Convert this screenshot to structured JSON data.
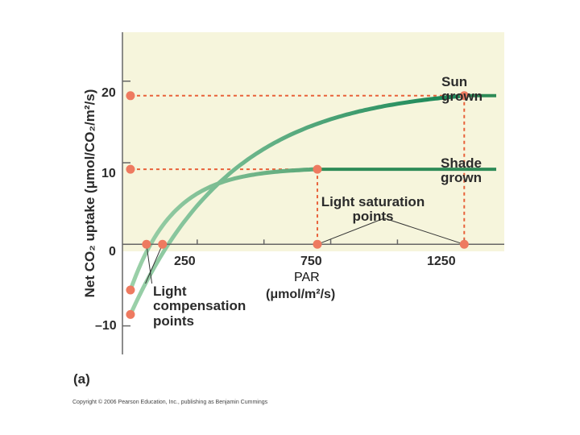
{
  "chart_data": {
    "type": "line",
    "panel_label": "(a)",
    "xlabel": "PAR",
    "xlabel_units": "(μmol/m²/s)",
    "ylabel": "Net CO₂ uptake (μmol/CO₂/m²/s)",
    "xlim": [
      -30,
      1400
    ],
    "ylim": [
      -13.5,
      26
    ],
    "x_ticks": [
      250,
      750,
      1250
    ],
    "y_ticks": [
      -10,
      0,
      10,
      20
    ],
    "x_tick_labels": [
      "250",
      "750",
      "1250"
    ],
    "y_tick_labels": [
      "–10",
      "0",
      "10",
      "20"
    ],
    "series": [
      {
        "name": "Sun grown",
        "label_line1": "Sun",
        "label_line2": "grown",
        "dark_respiration": -8.6,
        "max_uptake": 19.3,
        "k": 0.0026,
        "light_compensation_point": 120,
        "light_saturation_point": 1250
      },
      {
        "name": "Shade grown",
        "label_line1": "Shade",
        "label_line2": "grown",
        "dark_respiration": -5.6,
        "max_uptake": 9.4,
        "k": 0.0062,
        "light_compensation_point": 60,
        "light_saturation_point": 700
      }
    ],
    "annotations": {
      "light_saturation": [
        "Light saturation",
        "points"
      ],
      "light_compensation": [
        "Light",
        "compensation",
        "points"
      ]
    },
    "colors": {
      "sun_curve": "#1f8a5a",
      "shade_curve": "#2e8b57",
      "fade_curve": "#9fd3ac",
      "reference_lines": "#e8613a",
      "markers": "#ee7a60",
      "plot_background": "#f6f5dc"
    }
  },
  "copyright": "Copyright © 2006 Pearson Education, Inc., publishing as Benjamin Cummings"
}
